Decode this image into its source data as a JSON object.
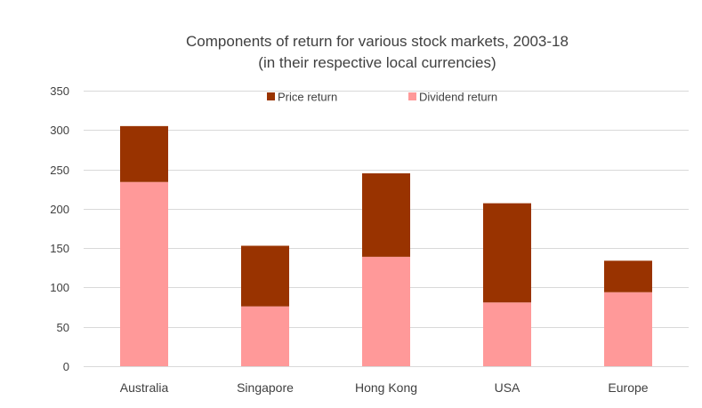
{
  "chart_data": {
    "type": "bar",
    "stacked": true,
    "title_lines": [
      "Components of return for various stock markets, 2003-18",
      "(in their respective local currencies)"
    ],
    "xlabel": "",
    "ylabel": "",
    "categories": [
      "Australia",
      "Singapore",
      "Hong Kong",
      "USA",
      "Europe"
    ],
    "series": [
      {
        "name": "Dividend return",
        "color": "#FF9999",
        "values": [
          234,
          76,
          139,
          81,
          94
        ]
      },
      {
        "name": "Price return",
        "color": "#993300",
        "values": [
          71,
          77,
          106,
          126,
          40
        ]
      }
    ],
    "legend_order": [
      "Price return",
      "Dividend return"
    ],
    "ylim": [
      0,
      350
    ],
    "yticks": [
      0,
      50,
      100,
      150,
      200,
      250,
      300,
      350
    ],
    "grid": true,
    "legend_position": "top-center",
    "gridline_color": "#D9D9D9"
  }
}
